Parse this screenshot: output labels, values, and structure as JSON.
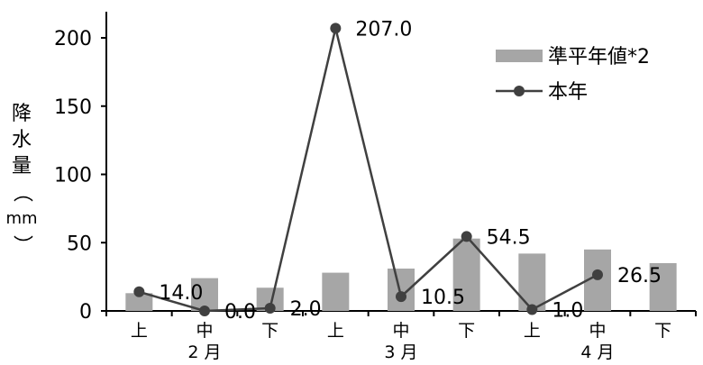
{
  "chart_data": {
    "type": "bar",
    "categories": [
      "上",
      "中",
      "下",
      "上",
      "中",
      "下",
      "上",
      "中",
      "下"
    ],
    "groups": [
      {
        "label": "2 月",
        "start": 0,
        "end": 2
      },
      {
        "label": "3 月",
        "start": 3,
        "end": 5
      },
      {
        "label": "4 月",
        "start": 6,
        "end": 8
      }
    ],
    "series": [
      {
        "name": "準平年値*2",
        "type": "bar",
        "color": "#a6a6a6",
        "values": [
          13,
          24,
          17,
          28,
          31,
          53,
          42,
          45,
          35
        ]
      },
      {
        "name": "本年",
        "type": "line",
        "color": "#404040",
        "values": [
          14.0,
          0.0,
          2.0,
          207.0,
          10.5,
          54.5,
          1.0,
          26.5,
          null
        ],
        "labels": [
          "14.0",
          "0.0",
          "2.0",
          "207.0",
          "10.5",
          "54.5",
          "1.0",
          "26.5",
          null
        ]
      }
    ],
    "ylabel": "降水量（mm）",
    "ylabel_chars": [
      "降",
      "水",
      "量",
      "（",
      "mm",
      "）"
    ],
    "ylim": [
      0,
      220
    ],
    "yticks": [
      0,
      50,
      100,
      150,
      200
    ],
    "grid": false,
    "legend": "top-right"
  }
}
